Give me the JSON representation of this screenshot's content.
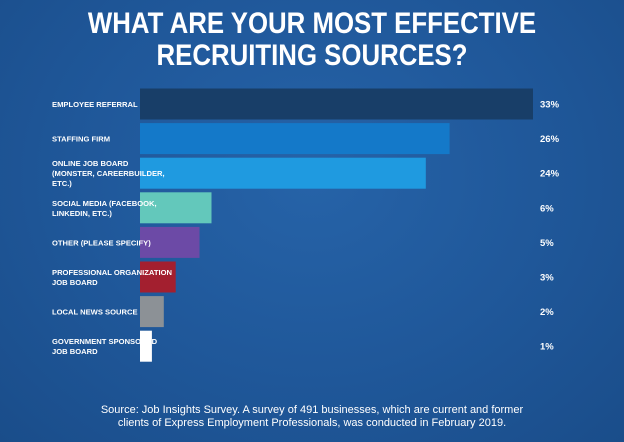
{
  "chart_data": {
    "type": "bar",
    "orientation": "horizontal",
    "title_lines": [
      "WHAT ARE YOUR MOST EFFECTIVE",
      "RECRUITING SOURCES?"
    ],
    "categories": [
      [
        "EMPLOYEE REFERRAL"
      ],
      [
        "STAFFING FIRM"
      ],
      [
        "ONLINE JOB BOARD",
        "(MONSTER, CAREERBUILDER,",
        "ETC.)"
      ],
      [
        "SOCIAL MEDIA (FACEBOOK,",
        "LINKEDIN, ETC.)"
      ],
      [
        "OTHER (PLEASE SPECIFY)"
      ],
      [
        "PROFESSIONAL ORGANIZATION",
        "JOB BOARD"
      ],
      [
        "LOCAL NEWS SOURCE"
      ],
      [
        "GOVERNMENT SPONSORED",
        "JOB BOARD"
      ]
    ],
    "values": [
      33,
      26,
      24,
      6,
      5,
      3,
      2,
      1
    ],
    "value_labels": [
      "33%",
      "26%",
      "24%",
      "6%",
      "5%",
      "3%",
      "2%",
      "1%"
    ],
    "colors": [
      "#183e68",
      "#1479c9",
      "#1f9ae0",
      "#63c8bb",
      "#6c4aa6",
      "#a31f2f",
      "#8c9196",
      "#ffffff"
    ],
    "xlim": [
      0,
      33
    ],
    "grid": false,
    "legend": "none"
  },
  "footer": {
    "source_lines": [
      "Source: Job Insights Survey. A survey of 491 businesses, which are current and former",
      "clients of Express Employment Professionals, was conducted in February 2019."
    ]
  }
}
